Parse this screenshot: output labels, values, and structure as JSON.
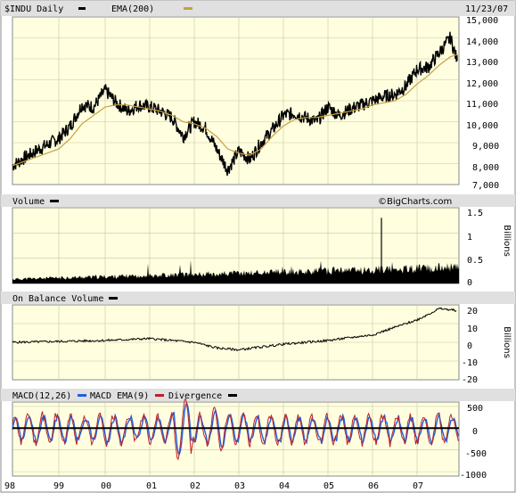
{
  "chart_data": [
    {
      "panel": "price",
      "type": "line",
      "legend": [
        {
          "label": "$INDU Daily",
          "color": "#000000"
        },
        {
          "label": "EMA(200)",
          "color": "#c8a040"
        }
      ],
      "date_label": "11/23/07",
      "y_ticks": [
        "15,000",
        "14,000",
        "13,000",
        "12,000",
        "11,000",
        "10,000",
        "9,000",
        "8,000",
        "7,000"
      ],
      "ylim": [
        7000,
        15000
      ],
      "x": [
        "98",
        "98.5",
        "99",
        "99.25",
        "99.5",
        "99.75",
        "00",
        "00.25",
        "00.5",
        "00.75",
        "01",
        "01.25",
        "01.5",
        "01.75",
        "02",
        "02.25",
        "02.5",
        "02.75",
        "03",
        "03.25",
        "03.5",
        "03.75",
        "04",
        "04.25",
        "04.5",
        "04.75",
        "05",
        "05.25",
        "05.5",
        "05.75",
        "06",
        "06.25",
        "06.5",
        "06.75",
        "07",
        "07.25",
        "07.5",
        "07.75",
        "07.9"
      ],
      "series": [
        {
          "name": "$INDU Daily",
          "values": [
            7900,
            8600,
            9200,
            9800,
            10800,
            10700,
            11500,
            10900,
            10500,
            10800,
            10700,
            10500,
            10200,
            9300,
            10000,
            9700,
            8700,
            7700,
            8600,
            8200,
            9000,
            9600,
            10300,
            10400,
            10200,
            10000,
            10700,
            10300,
            10600,
            10800,
            11000,
            11200,
            11300,
            11700,
            12500,
            12600,
            13300,
            14000,
            12900
          ]
        },
        {
          "name": "EMA(200)",
          "values": [
            7900,
            8300,
            8700,
            9200,
            9900,
            10300,
            10700,
            10800,
            10800,
            10700,
            10600,
            10500,
            10300,
            10000,
            9900,
            9700,
            9300,
            8700,
            8500,
            8400,
            8700,
            9300,
            9800,
            10100,
            10200,
            10200,
            10300,
            10400,
            10500,
            10600,
            10800,
            10900,
            11000,
            11300,
            11800,
            12200,
            12700,
            13100,
            13200
          ]
        }
      ]
    },
    {
      "panel": "volume",
      "type": "bar",
      "legend": [
        {
          "label": "Volume",
          "color": "#000000"
        }
      ],
      "watermark": "©BigCharts.com",
      "y_ticks": [
        "1.5",
        "1",
        "0.5",
        "0"
      ],
      "ylim": [
        0,
        1.5
      ],
      "unit_label": "Billions",
      "notable_peak": {
        "x": "06.2",
        "value": 1.3
      }
    },
    {
      "panel": "obv",
      "type": "line",
      "legend": [
        {
          "label": "On Balance Volume",
          "color": "#000000"
        }
      ],
      "y_ticks": [
        "20",
        "10",
        "0",
        "-10",
        "-20"
      ],
      "ylim": [
        -20,
        20
      ],
      "unit_label": "Billions",
      "x": [
        "98",
        "99",
        "00",
        "01",
        "02",
        "02.5",
        "03",
        "04",
        "05",
        "06",
        "07",
        "07.5",
        "07.9"
      ],
      "values": [
        0,
        0.5,
        1,
        2,
        0,
        -3,
        -4,
        -1,
        1,
        4,
        12,
        18,
        17
      ]
    },
    {
      "panel": "macd",
      "type": "line",
      "legend": [
        {
          "label": "MACD(12,26)",
          "color": "#000000"
        },
        {
          "label": "MACD EMA(9)",
          "color": "#2060e0"
        },
        {
          "label": "Divergence",
          "color": "#c02020"
        },
        {
          "label": "",
          "color": "#000000"
        }
      ],
      "y_ticks": [
        "500",
        "0",
        "-500",
        "-1000"
      ],
      "ylim": [
        -1100,
        600
      ]
    }
  ],
  "x_axis_labels": [
    "98",
    "99",
    "00",
    "01",
    "02",
    "03",
    "04",
    "05",
    "06",
    "07"
  ]
}
